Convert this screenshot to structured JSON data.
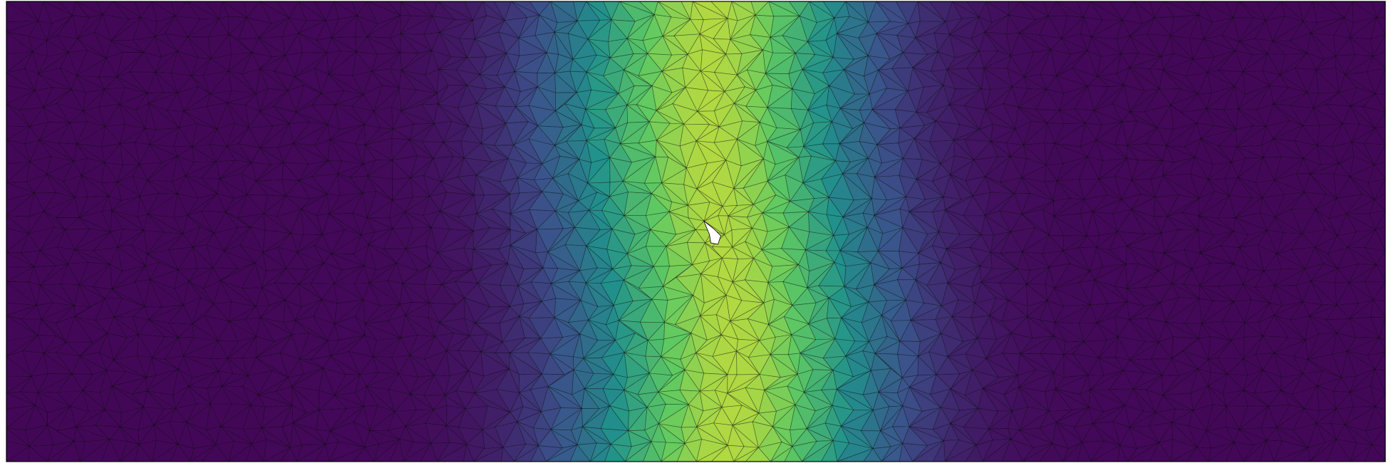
{
  "scene": {
    "kind": "triangulated mesh with scalar field",
    "colormap": "viridis",
    "colors": {
      "background": "#ffffff",
      "frame": "#000000",
      "edge": "#000000",
      "hole": "#ffffff",
      "low": "#440154",
      "lowmid": "#31688e",
      "mid": "#21918c",
      "highmid": "#5ec962",
      "high": "#fde725"
    },
    "field": {
      "peak_position": "center",
      "peak_fraction_x": 0.5,
      "band_width_fraction": 0.05
    }
  }
}
